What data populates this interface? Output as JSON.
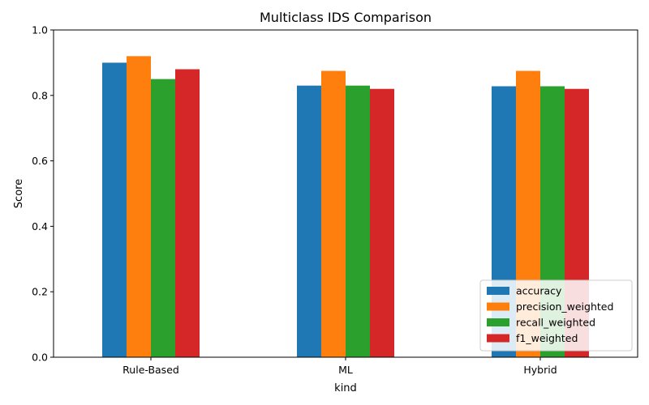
{
  "chart_data": {
    "type": "bar",
    "title": "Multiclass IDS Comparison",
    "xlabel": "kind",
    "ylabel": "Score",
    "ylim": [
      0,
      1
    ],
    "yticks": [
      "0.0",
      "0.2",
      "0.4",
      "0.6",
      "0.8",
      "1.0"
    ],
    "categories": [
      "Rule-Based",
      "ML",
      "Hybrid"
    ],
    "series": [
      {
        "name": "accuracy",
        "color": "#1f77b4",
        "values": [
          0.9,
          0.83,
          0.828
        ]
      },
      {
        "name": "precision_weighted",
        "color": "#ff7f0e",
        "values": [
          0.92,
          0.875,
          0.875
        ]
      },
      {
        "name": "recall_weighted",
        "color": "#2ca02c",
        "values": [
          0.85,
          0.83,
          0.828
        ]
      },
      {
        "name": "f1_weighted",
        "color": "#d62728",
        "values": [
          0.88,
          0.82,
          0.82
        ]
      }
    ],
    "grid": false,
    "legend_position": "bottom-right"
  }
}
